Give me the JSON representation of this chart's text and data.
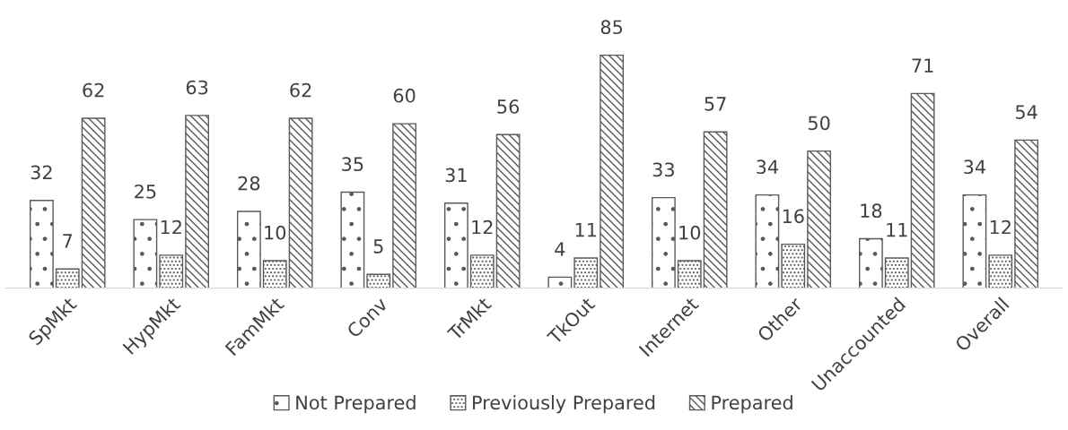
{
  "chart_data": {
    "type": "bar",
    "categories": [
      "SpMkt",
      "HypMkt",
      "FamMkt",
      "Conv",
      "TrMkt",
      "TkOut",
      "Internet",
      "Other",
      "Unaccounted",
      "Overall"
    ],
    "series": [
      {
        "name": "Not Prepared",
        "color": "#595959",
        "values": [
          32,
          25,
          28,
          35,
          31,
          4,
          33,
          34,
          18,
          34
        ]
      },
      {
        "name": "Previously Prepared",
        "color": "#595959",
        "values": [
          7,
          12,
          10,
          5,
          12,
          11,
          10,
          16,
          11,
          12
        ]
      },
      {
        "name": "Prepared",
        "color": "#595959",
        "values": [
          62,
          63,
          62,
          60,
          56,
          85,
          57,
          50,
          71,
          54
        ]
      }
    ],
    "data_labels": true,
    "legend": "bottom",
    "grid": false
  }
}
